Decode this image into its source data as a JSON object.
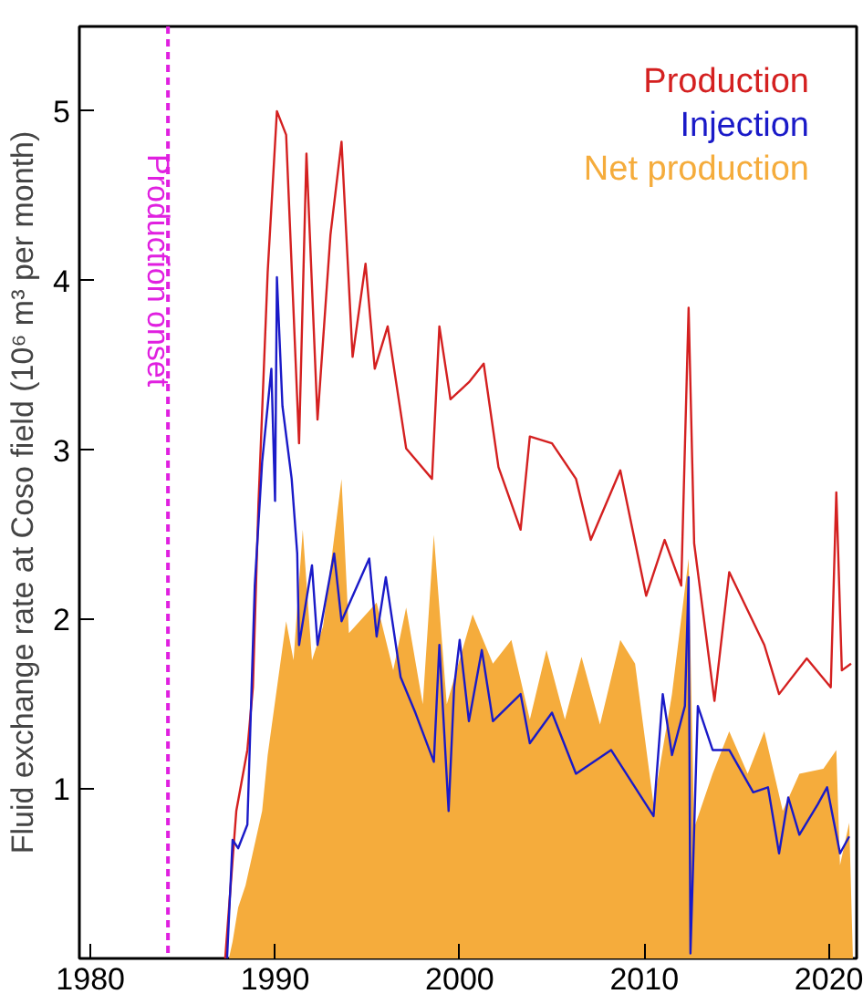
{
  "chart_data": {
    "type": "line",
    "ylabel": "Fluid exchange rate at Coso field (10⁶ m³ per month)",
    "xlim": [
      1979.4,
      2021.5
    ],
    "xticks": [
      1980,
      1990,
      2000,
      2010,
      2020
    ],
    "ylim": [
      0,
      5.5
    ],
    "yticks": [
      {
        "value": 0,
        "label": null
      },
      1,
      2,
      3,
      4,
      5
    ],
    "grid": false,
    "legend": "top right",
    "ref_lines": [
      {
        "axis": "x",
        "value": 1984.2,
        "label": "Production onset",
        "color": "#e020e0",
        "line_style": "dashed"
      }
    ],
    "series": [
      {
        "name": "Net production",
        "type": "area",
        "color": "#f5ac3c",
        "x": [
          1987.5,
          1987.7,
          1988.0,
          1988.4,
          1989.3,
          1989.6,
          1990.6,
          1991.0,
          1991.5,
          1992.0,
          1992.6,
          1993.6,
          1994.0,
          1995.5,
          1996.4,
          1997.1,
          1998.0,
          1998.6,
          1999.3,
          2000.7,
          2001.8,
          2002.8,
          2003.8,
          2004.7,
          2005.7,
          2006.6,
          2007.6,
          2008.7,
          2009.5,
          2010.5,
          2011.5,
          2012.4,
          2012.7,
          2013.7,
          2014.6,
          2015.6,
          2016.5,
          2017.5,
          2018.4,
          2019.7,
          2020.4,
          2020.6,
          2021.1,
          2021.3
        ],
        "values": [
          0,
          0.1,
          0.3,
          0.43,
          0.87,
          1.2,
          1.99,
          1.76,
          2.53,
          1.76,
          1.96,
          2.83,
          1.92,
          2.1,
          1.7,
          2.07,
          1.5,
          2.5,
          1.5,
          2.03,
          1.74,
          1.88,
          1.41,
          1.82,
          1.41,
          1.78,
          1.38,
          1.88,
          1.74,
          0.91,
          1.56,
          2.36,
          0.77,
          1.09,
          1.34,
          1.09,
          1.34,
          0.87,
          1.09,
          1.12,
          1.23,
          0.55,
          0.8,
          0
        ]
      },
      {
        "name": "Production",
        "color": "#d42020",
        "x": [
          1987.3,
          1987.7,
          1987.9,
          1988.5,
          1988.8,
          1989.1,
          1989.6,
          1990.1,
          1990.6,
          1991.3,
          1991.7,
          1992.3,
          1993.0,
          1993.6,
          1994.2,
          1994.9,
          1995.4,
          1996.1,
          1997.1,
          1998.5,
          1998.9,
          1999.5,
          2000.5,
          2001.3,
          2002.1,
          2003.3,
          2003.8,
          2005.0,
          2006.3,
          2007.1,
          2008.7,
          2010.1,
          2011.1,
          2012.0,
          2012.4,
          2012.7,
          2013.8,
          2014.6,
          2016.5,
          2017.3,
          2018.8,
          2020.1,
          2020.4,
          2020.7,
          2021.2
        ],
        "values": [
          0,
          0.58,
          0.87,
          1.23,
          1.6,
          2.68,
          4.05,
          5.0,
          4.86,
          3.04,
          4.75,
          3.18,
          4.27,
          4.82,
          3.55,
          4.1,
          3.48,
          3.73,
          3.01,
          2.83,
          3.73,
          3.3,
          3.4,
          3.51,
          2.9,
          2.53,
          3.08,
          3.04,
          2.83,
          2.47,
          2.88,
          2.14,
          2.47,
          2.2,
          3.84,
          2.45,
          1.52,
          2.28,
          1.85,
          1.56,
          1.77,
          1.6,
          2.75,
          1.7,
          1.74
        ]
      },
      {
        "name": "Injection",
        "color": "#1a1ac8",
        "x": [
          1987.4,
          1987.7,
          1988.0,
          1988.5,
          1988.9,
          1989.3,
          1989.8,
          1990.0,
          1990.1,
          1990.4,
          1990.9,
          1991.2,
          1991.3,
          1992.0,
          1992.3,
          1993.2,
          1993.6,
          1995.1,
          1995.5,
          1996.0,
          1996.8,
          1997.6,
          1998.6,
          1998.9,
          1999.4,
          1999.7,
          2000.0,
          2000.5,
          2001.2,
          2001.8,
          2003.3,
          2003.8,
          2005.0,
          2006.3,
          2008.2,
          2009.5,
          2010.5,
          2011.0,
          2011.5,
          2012.2,
          2012.4,
          2012.5,
          2012.9,
          2013.7,
          2014.6,
          2015.9,
          2016.7,
          2017.3,
          2017.8,
          2018.4,
          2019.4,
          2019.9,
          2020.6,
          2021.1
        ],
        "values": [
          0,
          0.7,
          0.65,
          0.79,
          2.2,
          2.93,
          3.48,
          2.7,
          4.02,
          3.26,
          2.83,
          2.39,
          1.85,
          2.32,
          1.85,
          2.39,
          1.99,
          2.36,
          1.9,
          2.25,
          1.66,
          1.45,
          1.16,
          1.85,
          0.87,
          1.6,
          1.88,
          1.4,
          1.82,
          1.4,
          1.56,
          1.27,
          1.45,
          1.09,
          1.23,
          1.01,
          0.84,
          1.56,
          1.2,
          1.49,
          2.25,
          0.03,
          1.49,
          1.23,
          1.23,
          0.98,
          1.01,
          0.62,
          0.95,
          0.73,
          0.91,
          1.01,
          0.62,
          0.72
        ]
      }
    ]
  }
}
